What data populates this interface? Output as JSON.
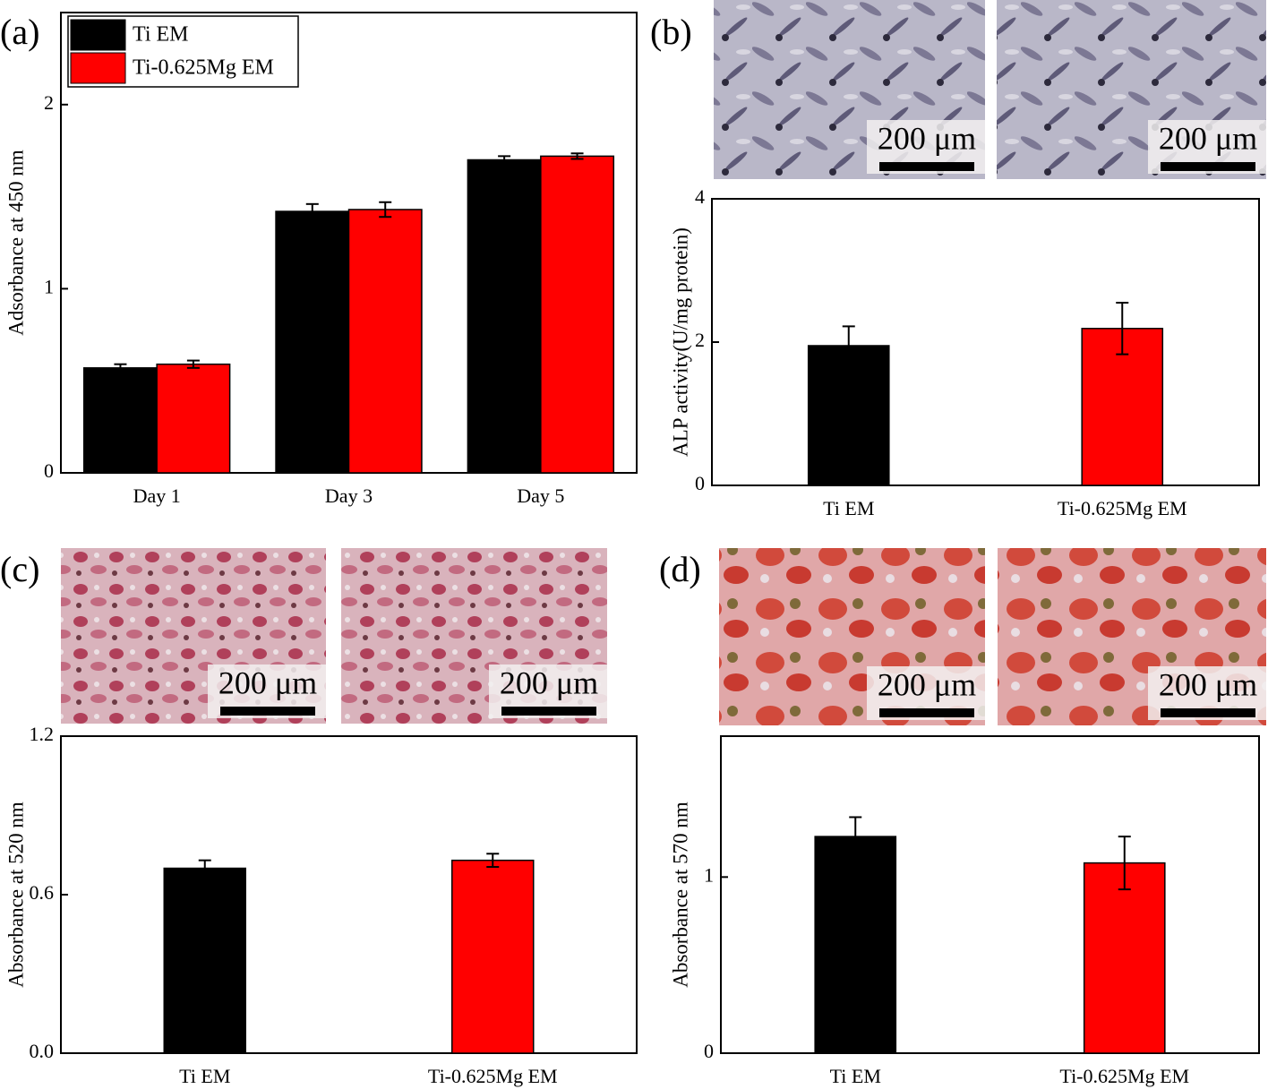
{
  "chart_data": [
    {
      "type": "bar",
      "panel_label": "(a)",
      "y_label": "Adsorbance at 450 nm",
      "categories": [
        "Day 1",
        "Day 3",
        "Day 5"
      ],
      "series": [
        {
          "name": "Ti EM",
          "color": "#000000",
          "values": [
            0.57,
            1.42,
            1.7
          ],
          "errors": [
            0.02,
            0.04,
            0.02
          ]
        },
        {
          "name": "Ti-0.625Mg EM",
          "color": "#ff0000",
          "values": [
            0.59,
            1.43,
            1.72
          ],
          "errors": [
            0.02,
            0.04,
            0.015
          ]
        }
      ],
      "ylim": [
        0,
        2.5
      ],
      "yticks": [
        0,
        1,
        2
      ],
      "legend": "upper left"
    },
    {
      "type": "bar",
      "panel_label": "(b)",
      "y_label": "ALP activity(U/mg protein)",
      "categories": [
        "Ti EM",
        "Ti-0.625Mg EM"
      ],
      "values": [
        1.95,
        2.19
      ],
      "errors": [
        0.27,
        0.36
      ],
      "colors": [
        "#000000",
        "#ff0000"
      ],
      "ylim": [
        0,
        4
      ],
      "yticks": [
        0,
        2,
        4
      ],
      "scale_bars": [
        "200 μm",
        "200 μm"
      ]
    },
    {
      "type": "bar",
      "panel_label": "(c)",
      "y_label": "Absorbance at 520 nm",
      "categories": [
        "Ti EM",
        "Ti-0.625Mg EM"
      ],
      "values": [
        0.7,
        0.73
      ],
      "errors": [
        0.03,
        0.025
      ],
      "colors": [
        "#000000",
        "#ff0000"
      ],
      "ylim": [
        0,
        1.2
      ],
      "yticks": [
        {
          "value": 0,
          "label": "0.0"
        },
        {
          "value": 0.6,
          "label": "0.6"
        },
        {
          "value": 1.2,
          "label": "1.2"
        }
      ],
      "scale_bars": [
        "200 μm",
        "200 μm"
      ]
    },
    {
      "type": "bar",
      "panel_label": "(d)",
      "y_label": "Absorbance at 570 nm",
      "categories": [
        "Ti EM",
        "Ti-0.625Mg EM"
      ],
      "values": [
        1.23,
        1.08
      ],
      "errors": [
        0.11,
        0.15
      ],
      "colors": [
        "#000000",
        "#ff0000"
      ],
      "ylim": [
        0,
        1.8
      ],
      "yticks": [
        0,
        1
      ],
      "scale_bars": [
        "200 μm",
        "200 μm"
      ]
    }
  ]
}
